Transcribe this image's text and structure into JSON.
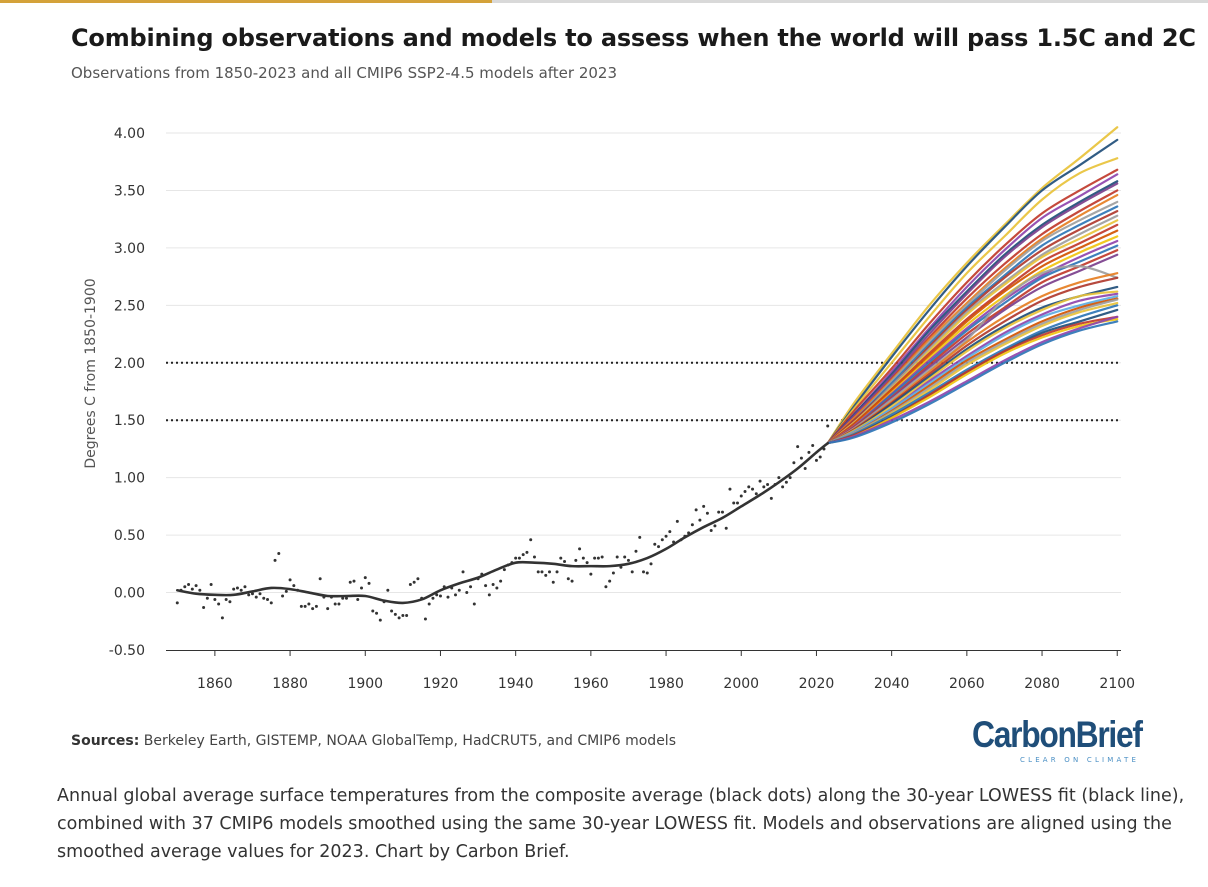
{
  "header": {
    "title": "Combining observations and models to assess when the world will pass 1.5C and 2C",
    "subtitle": "Observations from 1850-2023 and all CMIP6 SSP2-4.5 models after 2023"
  },
  "footer": {
    "sources_label": "Sources:",
    "sources_text": " Berkeley Earth, GISTEMP, NOAA GlobalTemp, HadCRUT5, and CMIP6 models",
    "logo_text": "CarbonBrief",
    "logo_tagline": "CLEAR ON CLIMATE",
    "caption": "Annual global average surface temperatures from the composite average (black dots) along the 30-year LOWESS fit (black line), combined with 37 CMIP6 models smoothed using the same 30-year LOWESS fit. Models and observations are aligned using the smoothed average values for 2023. Chart by Carbon Brief."
  },
  "colors": {
    "observations": "#333333",
    "threshold_lines": "#222222",
    "gridlines": "#e6e6e6",
    "logo_blue": "#1f4e79",
    "accent_gold": "#d4a23a",
    "model_palette": [
      "#e8c23a",
      "#1f4e79",
      "#c0392b",
      "#8e44ad",
      "#2e75b6",
      "#e67e22",
      "#9e9e9e",
      "#7b3f8c",
      "#d35400",
      "#5dade2",
      "#b03a2e",
      "#f1c40f"
    ]
  },
  "chart_data": {
    "type": "line",
    "ylabel": "Degrees C from 1850-1900",
    "xlabel": "",
    "xlim": [
      1847,
      2101
    ],
    "ylim": [
      -0.5,
      4.0
    ],
    "x_ticks": [
      1860,
      1880,
      1900,
      1920,
      1940,
      1960,
      1980,
      2000,
      2020,
      2040,
      2060,
      2080,
      2100
    ],
    "y_ticks": [
      -0.5,
      0.0,
      0.5,
      1.0,
      1.5,
      2.0,
      2.5,
      3.0,
      3.5,
      4.0
    ],
    "y_tick_labels": [
      "-0.50",
      "0.00",
      "0.50",
      "1.00",
      "1.50",
      "2.00",
      "2.50",
      "3.00",
      "3.50",
      "4.00"
    ],
    "grid": "horizontal",
    "thresholds": [
      1.5,
      2.0
    ],
    "observations_dots": {
      "x": [
        1850,
        1851,
        1852,
        1853,
        1854,
        1855,
        1856,
        1857,
        1858,
        1859,
        1860,
        1861,
        1862,
        1863,
        1864,
        1865,
        1866,
        1867,
        1868,
        1869,
        1870,
        1871,
        1872,
        1873,
        1874,
        1875,
        1876,
        1877,
        1878,
        1879,
        1880,
        1881,
        1882,
        1883,
        1884,
        1885,
        1886,
        1887,
        1888,
        1889,
        1890,
        1891,
        1892,
        1893,
        1894,
        1895,
        1896,
        1897,
        1898,
        1899,
        1900,
        1901,
        1902,
        1903,
        1904,
        1905,
        1906,
        1907,
        1908,
        1909,
        1910,
        1911,
        1912,
        1913,
        1914,
        1915,
        1916,
        1917,
        1918,
        1919,
        1920,
        1921,
        1922,
        1923,
        1924,
        1925,
        1926,
        1927,
        1928,
        1929,
        1930,
        1931,
        1932,
        1933,
        1934,
        1935,
        1936,
        1937,
        1938,
        1939,
        1940,
        1941,
        1942,
        1943,
        1944,
        1945,
        1946,
        1947,
        1948,
        1949,
        1950,
        1951,
        1952,
        1953,
        1954,
        1955,
        1956,
        1957,
        1958,
        1959,
        1960,
        1961,
        1962,
        1963,
        1964,
        1965,
        1966,
        1967,
        1968,
        1969,
        1970,
        1971,
        1972,
        1973,
        1974,
        1975,
        1976,
        1977,
        1978,
        1979,
        1980,
        1981,
        1982,
        1983,
        1984,
        1985,
        1986,
        1987,
        1988,
        1989,
        1990,
        1991,
        1992,
        1993,
        1994,
        1995,
        1996,
        1997,
        1998,
        1999,
        2000,
        2001,
        2002,
        2003,
        2004,
        2005,
        2006,
        2007,
        2008,
        2009,
        2010,
        2011,
        2012,
        2013,
        2014,
        2015,
        2016,
        2017,
        2018,
        2019,
        2020,
        2021,
        2022,
        2023
      ],
      "y": [
        -0.09,
        0.02,
        0.05,
        0.07,
        0.03,
        0.06,
        0.02,
        -0.13,
        -0.05,
        0.07,
        -0.06,
        -0.1,
        -0.22,
        -0.06,
        -0.08,
        0.03,
        0.04,
        0.02,
        0.05,
        -0.02,
        -0.01,
        -0.04,
        -0.01,
        -0.05,
        -0.06,
        -0.09,
        0.28,
        0.34,
        -0.03,
        0.01,
        0.11,
        0.06,
        0.02,
        -0.12,
        -0.12,
        -0.1,
        -0.14,
        -0.12,
        0.12,
        -0.04,
        -0.14,
        -0.04,
        -0.1,
        -0.1,
        -0.05,
        -0.05,
        0.09,
        0.1,
        -0.06,
        0.04,
        0.13,
        0.08,
        -0.16,
        -0.18,
        -0.24,
        -0.08,
        0.02,
        -0.16,
        -0.19,
        -0.22,
        -0.2,
        -0.2,
        0.07,
        0.09,
        0.12,
        -0.05,
        -0.23,
        -0.1,
        -0.05,
        -0.02,
        -0.03,
        0.05,
        -0.04,
        0.04,
        -0.02,
        0.02,
        0.18,
        0.0,
        0.05,
        -0.1,
        0.12,
        0.16,
        0.06,
        -0.02,
        0.07,
        0.04,
        0.1,
        0.2,
        0.24,
        0.26,
        0.3,
        0.3,
        0.33,
        0.35,
        0.46,
        0.31,
        0.18,
        0.18,
        0.15,
        0.18,
        0.09,
        0.18,
        0.3,
        0.27,
        0.12,
        0.1,
        0.28,
        0.38,
        0.3,
        0.26,
        0.16,
        0.3,
        0.3,
        0.31,
        0.05,
        0.1,
        0.17,
        0.31,
        0.22,
        0.31,
        0.28,
        0.18,
        0.36,
        0.48,
        0.18,
        0.17,
        0.25,
        0.42,
        0.4,
        0.46,
        0.49,
        0.53,
        0.44,
        0.62,
        0.46,
        0.49,
        0.52,
        0.59,
        0.72,
        0.63,
        0.75,
        0.69,
        0.54,
        0.58,
        0.7,
        0.7,
        0.56,
        0.9,
        0.78,
        0.78,
        0.84,
        0.88,
        0.92,
        0.9,
        0.86,
        0.97,
        0.92,
        0.94,
        0.82,
        0.94,
        1.0,
        0.92,
        0.96,
        1.0,
        1.13,
        1.27,
        1.17,
        1.08,
        1.22,
        1.28,
        1.15,
        1.18,
        1.25,
        1.45
      ]
    },
    "observations_lowess": {
      "x": [
        1850,
        1855,
        1860,
        1865,
        1870,
        1875,
        1880,
        1885,
        1890,
        1895,
        1900,
        1905,
        1910,
        1915,
        1920,
        1925,
        1930,
        1935,
        1940,
        1945,
        1950,
        1955,
        1960,
        1965,
        1970,
        1975,
        1980,
        1985,
        1990,
        1995,
        2000,
        2005,
        2010,
        2015,
        2020,
        2023
      ],
      "y": [
        0.02,
        -0.01,
        -0.02,
        -0.02,
        0.01,
        0.04,
        0.03,
        0.0,
        -0.03,
        -0.03,
        -0.03,
        -0.07,
        -0.09,
        -0.06,
        0.02,
        0.08,
        0.13,
        0.2,
        0.26,
        0.26,
        0.25,
        0.23,
        0.23,
        0.23,
        0.25,
        0.3,
        0.38,
        0.48,
        0.57,
        0.65,
        0.75,
        0.85,
        0.96,
        1.08,
        1.22,
        1.3
      ]
    },
    "models": {
      "x": [
        2023,
        2030,
        2040,
        2050,
        2060,
        2070,
        2080,
        2090,
        2100
      ],
      "series": [
        {
          "color": "#e8c23a",
          "values": [
            1.3,
            1.65,
            2.08,
            2.5,
            2.87,
            3.2,
            3.52,
            3.78,
            4.05
          ]
        },
        {
          "color": "#1f4e79",
          "values": [
            1.3,
            1.62,
            2.05,
            2.46,
            2.84,
            3.18,
            3.5,
            3.72,
            3.94
          ]
        },
        {
          "color": "#e8c23a",
          "values": [
            1.3,
            1.6,
            2.0,
            2.4,
            2.78,
            3.1,
            3.42,
            3.65,
            3.78
          ]
        },
        {
          "color": "#c0392b",
          "values": [
            1.3,
            1.58,
            1.95,
            2.34,
            2.7,
            3.02,
            3.3,
            3.5,
            3.68
          ]
        },
        {
          "color": "#8e44ad",
          "values": [
            1.3,
            1.55,
            1.92,
            2.3,
            2.66,
            2.98,
            3.26,
            3.45,
            3.64
          ]
        },
        {
          "color": "#1f4e79",
          "values": [
            1.3,
            1.55,
            1.9,
            2.28,
            2.62,
            2.94,
            3.2,
            3.4,
            3.58
          ]
        },
        {
          "color": "#7b3f8c",
          "values": [
            1.3,
            1.54,
            1.88,
            2.25,
            2.6,
            2.92,
            3.18,
            3.38,
            3.56
          ]
        },
        {
          "color": "#c0392b",
          "values": [
            1.3,
            1.52,
            1.86,
            2.22,
            2.56,
            2.86,
            3.12,
            3.32,
            3.5
          ]
        },
        {
          "color": "#e67e22",
          "values": [
            1.3,
            1.52,
            1.85,
            2.2,
            2.52,
            2.82,
            3.08,
            3.28,
            3.46
          ]
        },
        {
          "color": "#9e9e9e",
          "values": [
            1.3,
            1.5,
            1.84,
            2.18,
            2.5,
            2.8,
            3.06,
            3.24,
            3.4
          ]
        },
        {
          "color": "#2e75b6",
          "values": [
            1.3,
            1.5,
            1.82,
            2.16,
            2.48,
            2.76,
            3.02,
            3.2,
            3.36
          ]
        },
        {
          "color": "#b03a2e",
          "values": [
            1.3,
            1.5,
            1.8,
            2.14,
            2.46,
            2.74,
            2.98,
            3.16,
            3.32
          ]
        },
        {
          "color": "#9e9e9e",
          "values": [
            1.3,
            1.48,
            1.8,
            2.12,
            2.44,
            2.7,
            2.94,
            3.12,
            3.28
          ]
        },
        {
          "color": "#e8c23a",
          "values": [
            1.3,
            1.48,
            1.78,
            2.1,
            2.42,
            2.68,
            2.92,
            3.08,
            3.24
          ]
        },
        {
          "color": "#c0392b",
          "values": [
            1.3,
            1.47,
            1.77,
            2.08,
            2.38,
            2.64,
            2.88,
            3.04,
            3.2
          ]
        },
        {
          "color": "#d35400",
          "values": [
            1.3,
            1.46,
            1.76,
            2.06,
            2.36,
            2.62,
            2.84,
            3.0,
            3.15
          ]
        },
        {
          "color": "#f1c40f",
          "values": [
            1.3,
            1.45,
            1.74,
            2.04,
            2.33,
            2.58,
            2.8,
            2.96,
            3.1
          ]
        },
        {
          "color": "#8e44ad",
          "values": [
            1.3,
            1.45,
            1.73,
            2.02,
            2.3,
            2.55,
            2.76,
            2.92,
            3.06
          ]
        },
        {
          "color": "#2e75b6",
          "values": [
            1.3,
            1.44,
            1.72,
            2.0,
            2.28,
            2.52,
            2.74,
            2.88,
            3.02
          ]
        },
        {
          "color": "#c0392b",
          "values": [
            1.3,
            1.44,
            1.7,
            1.98,
            2.25,
            2.48,
            2.7,
            2.84,
            2.98
          ]
        },
        {
          "color": "#7b3f8c",
          "values": [
            1.3,
            1.43,
            1.69,
            1.96,
            2.22,
            2.46,
            2.66,
            2.8,
            2.94
          ]
        },
        {
          "color": "#9e9e9e",
          "values": [
            1.3,
            1.43,
            1.68,
            1.94,
            2.2,
            2.56,
            2.78,
            2.84,
            2.74
          ]
        },
        {
          "color": "#e67e22",
          "values": [
            1.3,
            1.42,
            1.66,
            1.92,
            2.18,
            2.4,
            2.58,
            2.7,
            2.78
          ]
        },
        {
          "color": "#b03a2e",
          "values": [
            1.3,
            1.42,
            1.65,
            1.9,
            2.15,
            2.36,
            2.54,
            2.66,
            2.74
          ]
        },
        {
          "color": "#1f4e79",
          "values": [
            1.3,
            1.41,
            1.64,
            1.88,
            2.12,
            2.32,
            2.48,
            2.58,
            2.66
          ]
        },
        {
          "color": "#e8c23a",
          "values": [
            1.3,
            1.41,
            1.62,
            1.86,
            2.1,
            2.3,
            2.46,
            2.58,
            2.62
          ]
        },
        {
          "color": "#8e44ad",
          "values": [
            1.3,
            1.4,
            1.6,
            1.84,
            2.06,
            2.26,
            2.42,
            2.54,
            2.6
          ]
        },
        {
          "color": "#5dade2",
          "values": [
            1.3,
            1.4,
            1.6,
            1.82,
            2.04,
            2.24,
            2.4,
            2.5,
            2.58
          ]
        },
        {
          "color": "#d35400",
          "values": [
            1.3,
            1.39,
            1.58,
            1.8,
            2.02,
            2.2,
            2.36,
            2.48,
            2.56
          ]
        },
        {
          "color": "#9e9e9e",
          "values": [
            1.3,
            1.39,
            1.57,
            1.78,
            2.0,
            2.18,
            2.34,
            2.46,
            2.55
          ]
        },
        {
          "color": "#e8c23a",
          "values": [
            1.3,
            1.38,
            1.56,
            1.76,
            1.98,
            2.16,
            2.32,
            2.44,
            2.52
          ]
        },
        {
          "color": "#2e75b6",
          "values": [
            1.3,
            1.38,
            1.55,
            1.74,
            1.94,
            2.12,
            2.28,
            2.4,
            2.5
          ]
        },
        {
          "color": "#1f4e79",
          "values": [
            1.3,
            1.37,
            1.53,
            1.72,
            1.92,
            2.1,
            2.26,
            2.36,
            2.46
          ]
        },
        {
          "color": "#c0392b",
          "values": [
            1.3,
            1.37,
            1.52,
            1.72,
            1.92,
            2.1,
            2.24,
            2.34,
            2.4
          ]
        },
        {
          "color": "#f1c40f",
          "values": [
            1.3,
            1.36,
            1.52,
            1.7,
            1.9,
            2.08,
            2.22,
            2.32,
            2.38
          ]
        },
        {
          "color": "#8e44ad",
          "values": [
            1.3,
            1.36,
            1.5,
            1.66,
            1.84,
            2.02,
            2.18,
            2.3,
            2.4
          ]
        },
        {
          "color": "#2e75b6",
          "values": [
            1.3,
            1.35,
            1.48,
            1.64,
            1.82,
            2.0,
            2.16,
            2.28,
            2.36
          ]
        }
      ]
    }
  }
}
